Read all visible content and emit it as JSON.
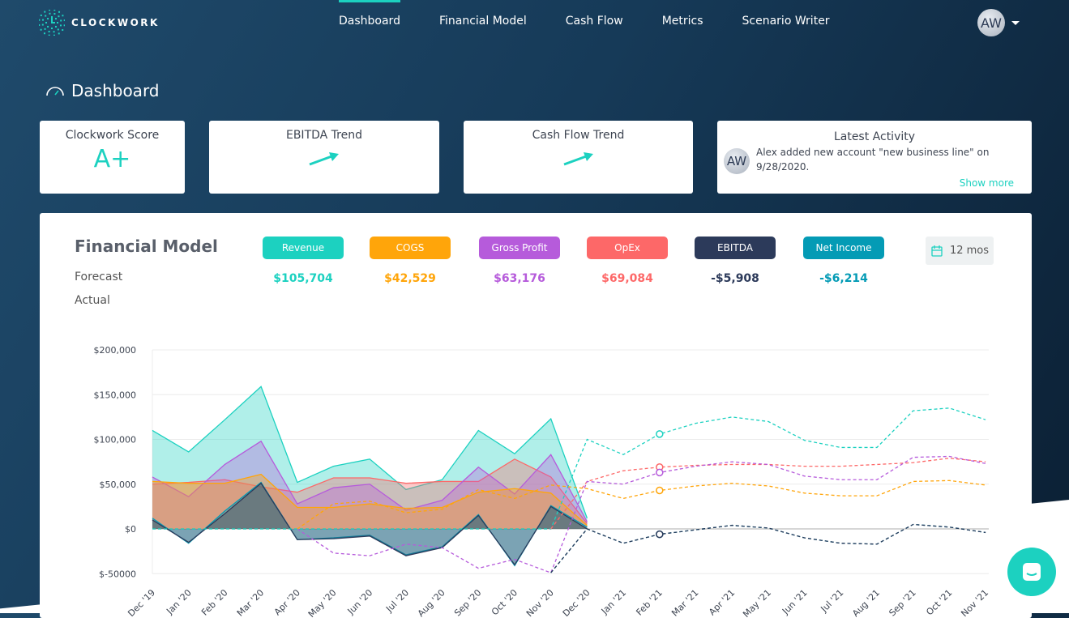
{
  "brand": {
    "name": "CLOCKWORK"
  },
  "nav": {
    "items": [
      {
        "label": "Dashboard",
        "active": true
      },
      {
        "label": "Financial Model"
      },
      {
        "label": "Cash Flow"
      },
      {
        "label": "Metrics"
      },
      {
        "label": "Scenario Writer"
      }
    ],
    "user_initials": "AW"
  },
  "page": {
    "title": "Dashboard",
    "icon": "speedometer-icon"
  },
  "cards": {
    "score": {
      "title": "Clockwork Score",
      "value": "A+"
    },
    "ebitda": {
      "title": "EBITDA Trend",
      "icon": "arrow-up-right-icon"
    },
    "cashflow": {
      "title": "Cash Flow Trend",
      "icon": "arrow-up-right-icon"
    },
    "activity": {
      "title": "Latest Activity",
      "initials": "AW",
      "text": "Alex added new account \"new business line\" on 9/28/2020.",
      "show_more": "Show more"
    }
  },
  "financial_model": {
    "title": "Financial Model",
    "row_labels": {
      "forecast": "Forecast",
      "actual": "Actual"
    },
    "period": "12 mos",
    "metrics": [
      {
        "label": "Revenue",
        "forecast": "$105,704",
        "color": "#1cd1c0"
      },
      {
        "label": "COGS",
        "forecast": "$42,529",
        "color": "#ffa50a"
      },
      {
        "label": "Gross Profit",
        "forecast": "$63,176",
        "color": "#b65bdb"
      },
      {
        "label": "OpEx",
        "forecast": "$69,084",
        "color": "#fd6868"
      },
      {
        "label": "EBITDA",
        "forecast": "-$5,908",
        "color": "#2c3a5a"
      },
      {
        "label": "Net Income",
        "forecast": "-$6,214",
        "color": "#049bb5"
      }
    ]
  },
  "chart_data": {
    "type": "area",
    "categories": [
      "Dec '19",
      "Jan '20",
      "Feb '20",
      "Mar '20",
      "Apr '20",
      "May '20",
      "Jun '20",
      "Jul '20",
      "Aug '20",
      "Sep '20",
      "Oct '20",
      "Nov '20",
      "Dec '20",
      "Jan '21",
      "Feb '21",
      "Mar '21",
      "Apr '21",
      "May '21",
      "Jun '21",
      "Jul '21",
      "Aug '21",
      "Sep '21",
      "Oct '21",
      "Nov '21"
    ],
    "ylim": [
      -50000,
      200000
    ],
    "yticks": [
      {
        "v": 200000,
        "label": "$200,000"
      },
      {
        "v": 150000,
        "label": "$150,000"
      },
      {
        "v": 100000,
        "label": "$100,000"
      },
      {
        "v": 50000,
        "label": "$50,000"
      },
      {
        "v": 0,
        "label": "$0"
      },
      {
        "v": -50000,
        "label": "$-50000"
      }
    ],
    "grid": true,
    "series": [
      {
        "name": "Revenue",
        "color": "#1cd1c0",
        "actual": [
          110000,
          86000,
          122000,
          159000,
          52000,
          70000,
          78000,
          44000,
          55000,
          110000,
          84000,
          123000,
          12000
        ],
        "forecast": [
          0,
          0,
          0,
          0,
          0,
          0,
          0,
          0,
          0,
          0,
          0,
          0,
          100000,
          83000,
          106000,
          118000,
          125000,
          120000,
          99000,
          91000,
          91000,
          132000,
          135000,
          122000
        ]
      },
      {
        "name": "OpEx",
        "color": "#fd6868",
        "actual": [
          50000,
          52000,
          55000,
          47000,
          41000,
          57000,
          57000,
          51000,
          53000,
          53000,
          78000,
          58000,
          6000
        ],
        "forecast": [
          null,
          null,
          null,
          null,
          null,
          null,
          null,
          null,
          null,
          null,
          null,
          0,
          53000,
          65000,
          69000,
          71000,
          72000,
          72000,
          70000,
          70000,
          72000,
          74000,
          79000,
          75000
        ]
      },
      {
        "name": "Gross Profit",
        "color": "#b65bdb",
        "actual": [
          58000,
          36000,
          72000,
          98000,
          28000,
          46000,
          50000,
          21000,
          32000,
          69000,
          39000,
          83000,
          8000
        ],
        "forecast": [
          null,
          null,
          null,
          null,
          0,
          -27000,
          -30000,
          -17000,
          -21000,
          -44000,
          -34000,
          -49000,
          53000,
          50000,
          63000,
          70000,
          75000,
          72000,
          59000,
          55000,
          55000,
          80000,
          81000,
          73000
        ]
      },
      {
        "name": "COGS",
        "color": "#ffa50a",
        "actual": [
          53000,
          51000,
          51000,
          61000,
          24000,
          24000,
          28000,
          23000,
          24000,
          41000,
          45000,
          40000,
          4000
        ],
        "forecast": [
          null,
          null,
          null,
          null,
          0,
          28000,
          31000,
          18000,
          22000,
          44000,
          34000,
          49000,
          45000,
          34000,
          43000,
          48000,
          51000,
          48000,
          40000,
          37000,
          37000,
          53000,
          54000,
          49000
        ]
      },
      {
        "name": "Net Income",
        "color": "#049bb5",
        "actual": [
          12000,
          -16000,
          20000,
          52000,
          -12000,
          -10000,
          -7000,
          -29000,
          -20000,
          16000,
          -41000,
          26000,
          2000
        ],
        "forecast": [
          null,
          null,
          null,
          null,
          null,
          null,
          null,
          null,
          null,
          null,
          null,
          -49000,
          0,
          -16000,
          -6000,
          -1000,
          4000,
          1000,
          -10000,
          -16000,
          -17000,
          5000,
          2000,
          -4000
        ]
      },
      {
        "name": "EBITDA",
        "color": "#2c3a5a",
        "actual": [
          10000,
          -15000,
          17000,
          51000,
          -12000,
          -11000,
          -8000,
          -30000,
          -21000,
          15000,
          -40000,
          25000,
          0
        ],
        "forecast": [
          null,
          null,
          null,
          null,
          null,
          null,
          null,
          null,
          null,
          null,
          null,
          -49000,
          0,
          -16000,
          -6000,
          -1000,
          4000,
          1000,
          -10000,
          -16000,
          -17000,
          5000,
          2000,
          -4000
        ]
      }
    ],
    "marker_category": "Feb '21"
  }
}
